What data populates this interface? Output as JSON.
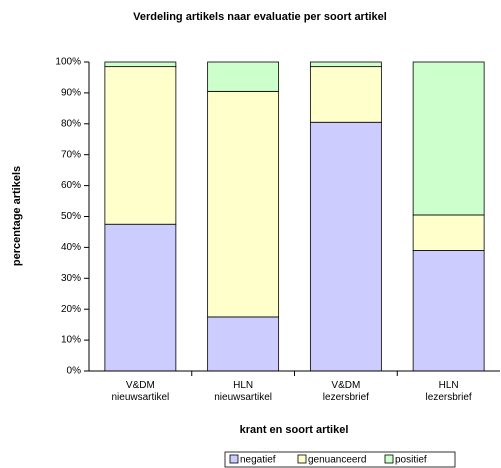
{
  "chart_data": {
    "type": "stacked_bar",
    "title": "Verdeling artikels naar evaluatie per soort artikel",
    "x_label": "krant en soort artikel",
    "y_label": "percentage artikels",
    "categories": [
      "V&DM nieuwsartikel",
      "HLN nieuwsartikel",
      "V&DM lezersbrief",
      "HLN lezersbrief"
    ],
    "series": [
      {
        "name": "negatief",
        "color": "#ccccff",
        "values": [
          47.5,
          17.5,
          80.5,
          39
        ]
      },
      {
        "name": "genuanceerd",
        "color": "#ffffcc",
        "values": [
          51,
          73,
          18,
          11.5
        ]
      },
      {
        "name": "positief",
        "color": "#ccffcc",
        "values": [
          1.5,
          9.5,
          1.5,
          49.5
        ]
      }
    ],
    "ylim": [
      0,
      100
    ],
    "yticks": [
      {
        "value": 0,
        "label": "0%"
      },
      {
        "value": 10,
        "label": "10%"
      },
      {
        "value": 20,
        "label": "20%"
      },
      {
        "value": 30,
        "label": "30%"
      },
      {
        "value": 40,
        "label": "40%"
      },
      {
        "value": 50,
        "label": "50%"
      },
      {
        "value": 60,
        "label": "60%"
      },
      {
        "value": 70,
        "label": "70%"
      },
      {
        "value": 80,
        "label": "80%"
      },
      {
        "value": 90,
        "label": "90%"
      },
      {
        "value": 100,
        "label": "100%"
      }
    ],
    "legend": "bottom"
  }
}
